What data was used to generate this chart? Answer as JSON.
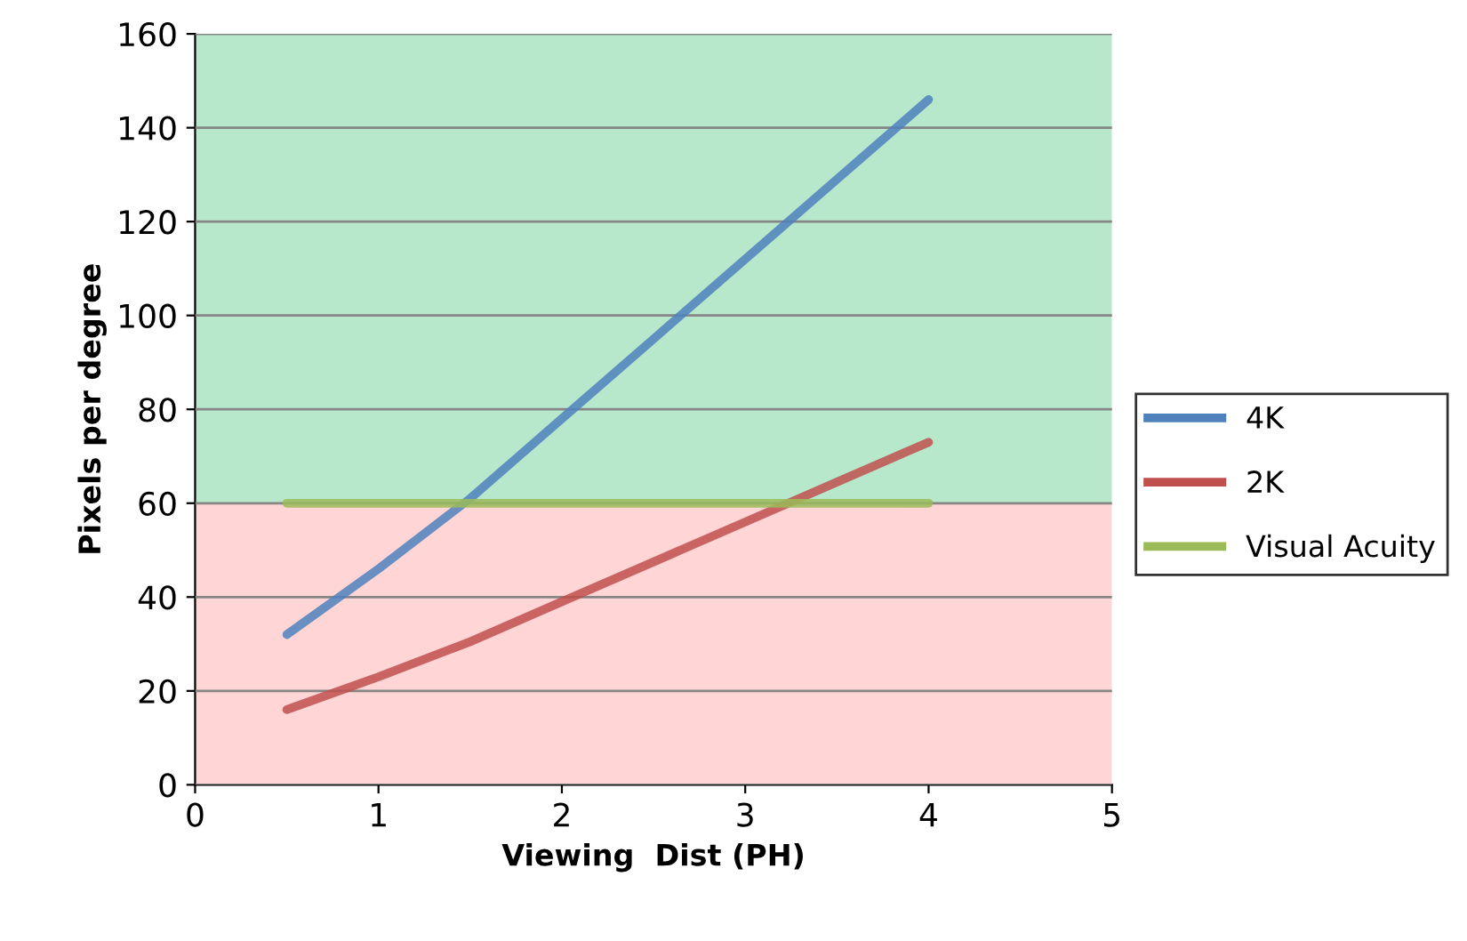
{
  "chart_data": {
    "type": "line",
    "xlabel": "Viewing  Dist (PH)",
    "ylabel": "Pixels per degree",
    "x": [
      0.5,
      1,
      1.5,
      2,
      2.5,
      3,
      3.5,
      4
    ],
    "series": [
      {
        "name": "4K",
        "color": "#4f81bd",
        "values": [
          32,
          46,
          61,
          78,
          95,
          112,
          129,
          146
        ]
      },
      {
        "name": "2K",
        "color": "#c0504d",
        "values": [
          16,
          23,
          30.5,
          39,
          47.5,
          56,
          64.5,
          73
        ]
      },
      {
        "name": "Visual Acuity",
        "color": "#9bbb59",
        "values": [
          60,
          60,
          60,
          60,
          60,
          60,
          60,
          60
        ]
      }
    ],
    "bands": [
      {
        "axis": "y",
        "from": 0,
        "to": 60,
        "color": "#ffd5d5"
      },
      {
        "axis": "y",
        "from": 60,
        "to": 160,
        "color": "#b8e8cc"
      }
    ],
    "xlim": [
      0,
      5
    ],
    "xticks": [
      0,
      1,
      2,
      3,
      4,
      5
    ],
    "ylim": [
      0,
      160
    ],
    "yticks": [
      0,
      20,
      40,
      60,
      80,
      100,
      120,
      140,
      160
    ],
    "grid": "y",
    "legend": "right",
    "marker": "none",
    "line_style": "solid"
  }
}
